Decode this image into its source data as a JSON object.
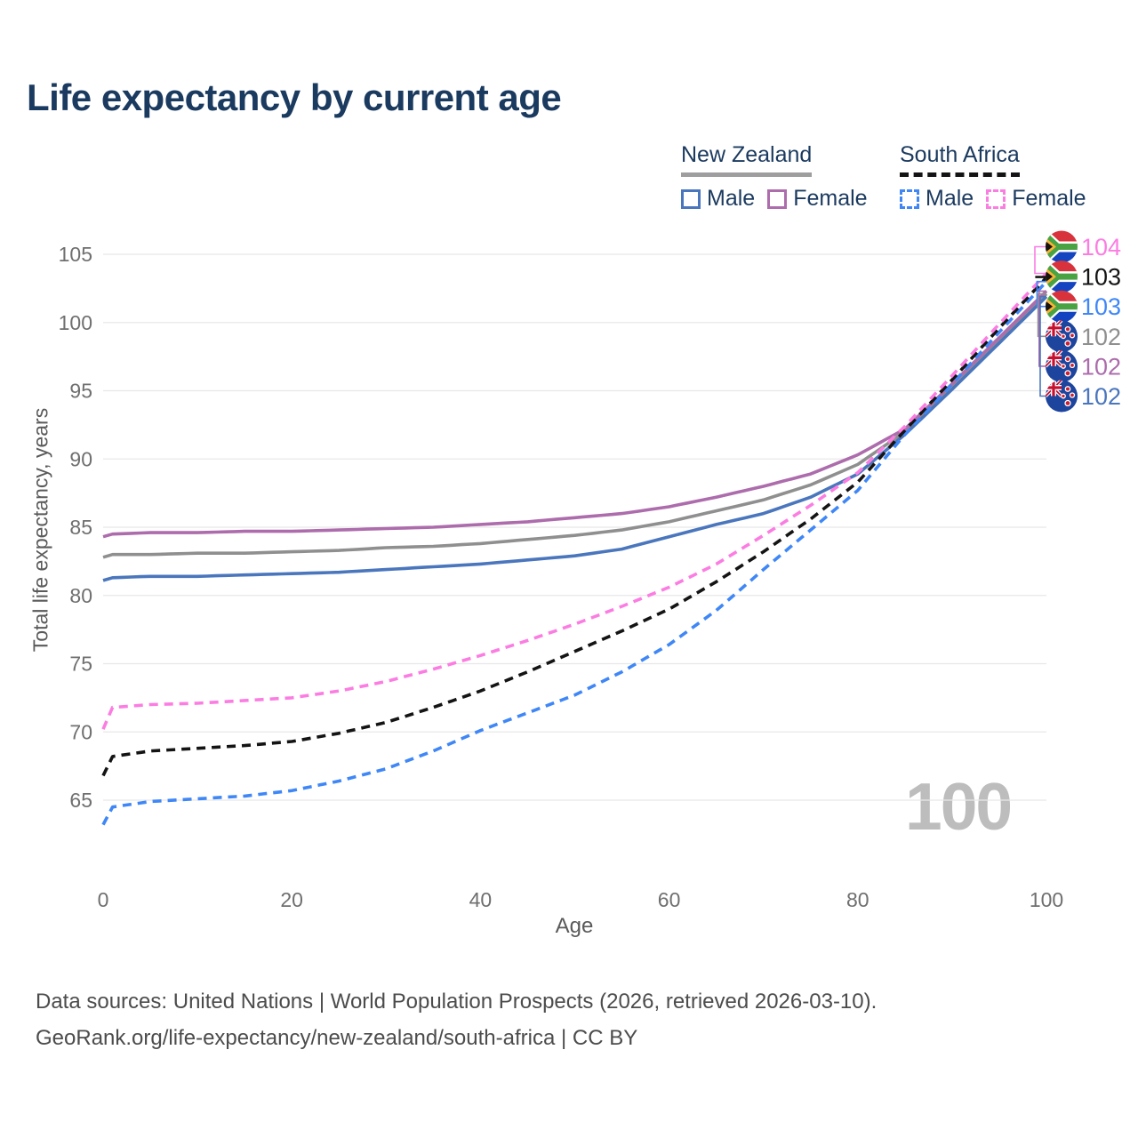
{
  "title": "Life expectancy by current age",
  "legend": {
    "nz": {
      "name": "New Zealand",
      "male": "Male",
      "female": "Female"
    },
    "sa": {
      "name": "South Africa",
      "male": "Male",
      "female": "Female"
    }
  },
  "axes": {
    "x": {
      "label": "Age",
      "ticks": [
        0,
        20,
        40,
        60,
        80,
        100
      ]
    },
    "y": {
      "label": "Total life expectancy, years",
      "ticks": [
        65,
        70,
        75,
        80,
        85,
        90,
        95,
        100,
        105
      ]
    }
  },
  "watermark": "100",
  "footer": {
    "line1": "Data sources: United Nations | World Population Prospects (2026, retrieved 2026-03-10).",
    "line2": "GeoRank.org/life-expectancy/new-zealand/south-africa | CC BY"
  },
  "colors": {
    "title": "#1b3a5f",
    "nz_underline": "#9e9e9e",
    "sa_underline": "#141414",
    "nz_male": "#4a76bd",
    "nz_female": "#ad6cac",
    "nz_total": "#8f8f8f",
    "sa_male": "#3f87f7",
    "sa_female": "#fc7de2",
    "sa_total": "#141414",
    "grid": "#e8e8e8",
    "tick": "#6f6f6f",
    "watermark": "#bdbdbd"
  },
  "end_labels": [
    {
      "value": "104",
      "series_id": "sa_female",
      "flag": "za",
      "color": "#fc7de2"
    },
    {
      "value": "103",
      "series_id": "sa_total",
      "flag": "za",
      "color": "#141414"
    },
    {
      "value": "103",
      "series_id": "sa_male",
      "flag": "za",
      "color": "#3f87f7"
    },
    {
      "value": "102",
      "series_id": "nz_total",
      "flag": "nz",
      "color": "#8f8f8f"
    },
    {
      "value": "102",
      "series_id": "nz_female",
      "flag": "nz",
      "color": "#ad6cac"
    },
    {
      "value": "102",
      "series_id": "nz_male",
      "flag": "nz",
      "color": "#4a76bd"
    }
  ],
  "chart_data": {
    "type": "line",
    "title": "Life expectancy by current age",
    "xlabel": "Age",
    "ylabel": "Total life expectancy, years",
    "xlim": [
      0,
      100
    ],
    "ylim": [
      62,
      107
    ],
    "grid": "horizontal-only",
    "legend_position": "top-right",
    "x": [
      0,
      1,
      5,
      10,
      15,
      20,
      25,
      30,
      35,
      40,
      45,
      50,
      55,
      60,
      65,
      70,
      75,
      80,
      85,
      90,
      95,
      100
    ],
    "series": [
      {
        "id": "nz_total",
        "name": "New Zealand — Total",
        "country": "New Zealand",
        "sex": "Total",
        "line_style": "solid",
        "color": "#8f8f8f",
        "end_label": "102",
        "values": [
          82.8,
          83.0,
          83.0,
          83.1,
          83.1,
          83.2,
          83.3,
          83.5,
          83.6,
          83.8,
          84.1,
          84.4,
          84.8,
          85.4,
          86.2,
          87.0,
          88.1,
          89.6,
          92.0,
          95.3,
          98.7,
          102.1
        ]
      },
      {
        "id": "nz_female",
        "name": "New Zealand — Female",
        "country": "New Zealand",
        "sex": "Female",
        "line_style": "solid",
        "color": "#ad6cac",
        "end_label": "102",
        "values": [
          84.3,
          84.5,
          84.6,
          84.6,
          84.7,
          84.7,
          84.8,
          84.9,
          85.0,
          85.2,
          85.4,
          85.7,
          86.0,
          86.5,
          87.2,
          88.0,
          88.9,
          90.3,
          92.2,
          95.5,
          98.9,
          102.3
        ]
      },
      {
        "id": "nz_male",
        "name": "New Zealand — Male",
        "country": "New Zealand",
        "sex": "Male",
        "line_style": "solid",
        "color": "#4a76bd",
        "end_label": "102",
        "values": [
          81.1,
          81.3,
          81.4,
          81.4,
          81.5,
          81.6,
          81.7,
          81.9,
          82.1,
          82.3,
          82.6,
          82.9,
          83.4,
          84.3,
          85.2,
          86.0,
          87.2,
          88.9,
          91.8,
          95.1,
          98.5,
          101.9
        ]
      },
      {
        "id": "sa_male",
        "name": "South Africa — Male",
        "country": "South Africa",
        "sex": "Male",
        "line_style": "dashed",
        "color": "#3f87f7",
        "end_label": "103",
        "values": [
          63.2,
          64.5,
          64.9,
          65.1,
          65.3,
          65.7,
          66.4,
          67.3,
          68.6,
          70.1,
          71.4,
          72.7,
          74.4,
          76.4,
          78.9,
          81.9,
          84.8,
          87.7,
          91.8,
          95.5,
          99.3,
          103.0
        ]
      },
      {
        "id": "sa_total",
        "name": "South Africa — Total",
        "country": "South Africa",
        "sex": "Total",
        "line_style": "dashed",
        "color": "#141414",
        "end_label": "103",
        "values": [
          66.8,
          68.2,
          68.6,
          68.8,
          69.0,
          69.3,
          69.9,
          70.7,
          71.8,
          73.0,
          74.4,
          75.9,
          77.4,
          79.0,
          81.0,
          83.2,
          85.6,
          88.3,
          92.1,
          95.8,
          99.6,
          103.3
        ]
      },
      {
        "id": "sa_female",
        "name": "South Africa — Female",
        "country": "South Africa",
        "sex": "Female",
        "line_style": "dashed",
        "color": "#fc7de2",
        "end_label": "104",
        "values": [
          70.2,
          71.8,
          72.0,
          72.1,
          72.3,
          72.5,
          73.0,
          73.7,
          74.6,
          75.6,
          76.7,
          77.9,
          79.2,
          80.6,
          82.3,
          84.4,
          86.6,
          89.0,
          92.4,
          96.1,
          99.9,
          103.6
        ]
      }
    ]
  }
}
